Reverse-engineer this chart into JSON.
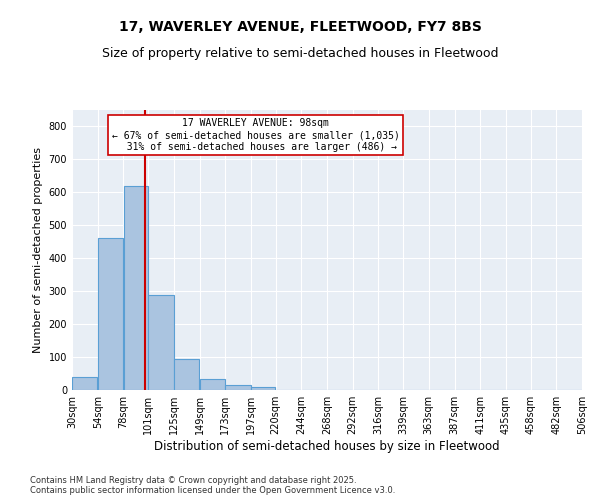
{
  "title_line1": "17, WAVERLEY AVENUE, FLEETWOOD, FY7 8BS",
  "title_line2": "Size of property relative to semi-detached houses in Fleetwood",
  "xlabel": "Distribution of semi-detached houses by size in Fleetwood",
  "ylabel": "Number of semi-detached properties",
  "footnote": "Contains HM Land Registry data © Crown copyright and database right 2025.\nContains public sector information licensed under the Open Government Licence v3.0.",
  "bins": [
    30,
    54,
    78,
    101,
    125,
    149,
    173,
    197,
    220,
    244,
    268,
    292,
    316,
    339,
    363,
    387,
    411,
    435,
    458,
    482,
    506
  ],
  "bin_labels": [
    "30sqm",
    "54sqm",
    "78sqm",
    "101sqm",
    "125sqm",
    "149sqm",
    "173sqm",
    "197sqm",
    "220sqm",
    "244sqm",
    "268sqm",
    "292sqm",
    "316sqm",
    "339sqm",
    "363sqm",
    "387sqm",
    "411sqm",
    "435sqm",
    "458sqm",
    "482sqm",
    "506sqm"
  ],
  "values": [
    38,
    460,
    618,
    288,
    93,
    33,
    16,
    10,
    0,
    0,
    0,
    0,
    0,
    0,
    0,
    0,
    0,
    0,
    0,
    0
  ],
  "bar_color": "#aac4e0",
  "bar_edge_color": "#5a9fd4",
  "vline_x": 98,
  "vline_color": "#cc0000",
  "annotation_line1": "17 WAVERLEY AVENUE: 98sqm",
  "annotation_line2": "← 67% of semi-detached houses are smaller (1,035)",
  "annotation_line3": "  31% of semi-detached houses are larger (486) →",
  "annotation_box_color": "#cc0000",
  "ylim": [
    0,
    850
  ],
  "yticks": [
    0,
    100,
    200,
    300,
    400,
    500,
    600,
    700,
    800
  ],
  "background_color": "#e8eef5",
  "grid_color": "#ffffff",
  "title_fontsize": 10,
  "subtitle_fontsize": 9,
  "axis_label_fontsize": 8,
  "tick_fontsize": 7,
  "annotation_fontsize": 7
}
